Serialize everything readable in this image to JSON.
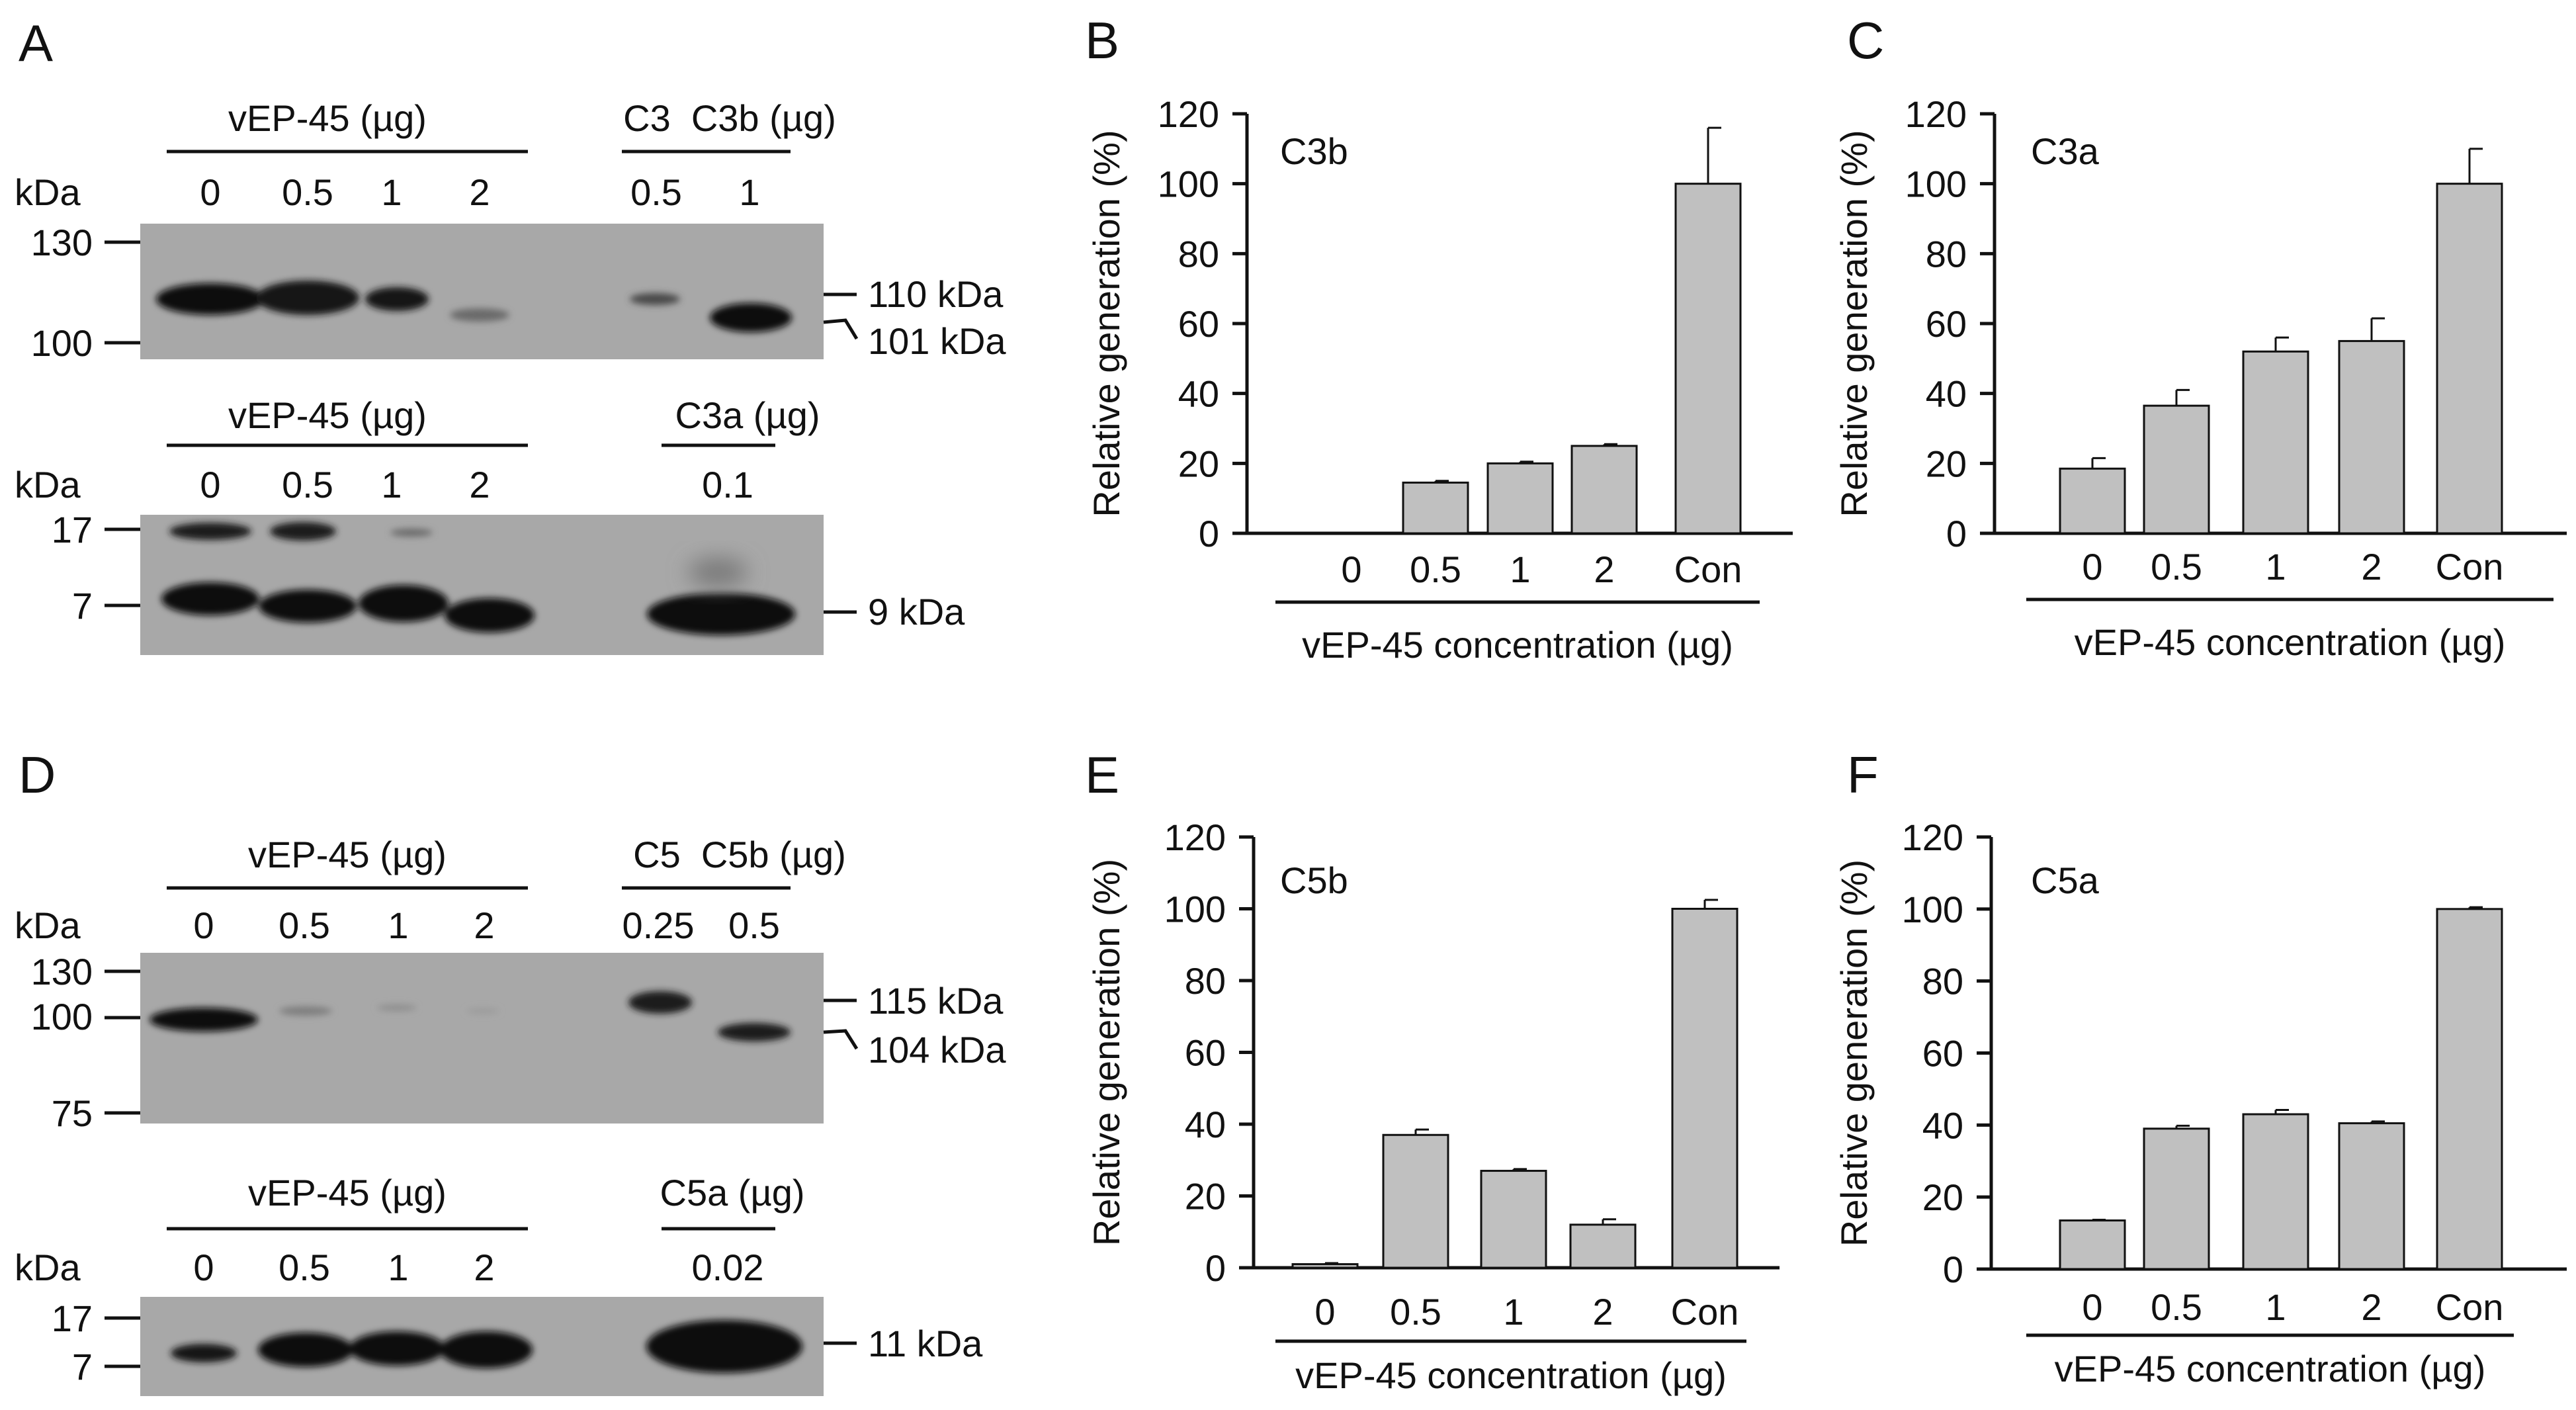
{
  "colors": {
    "bar": "#c0c0c0",
    "ink": "#111111",
    "blot_bg": "#a8a8a8",
    "band": "#0e0e0e"
  },
  "blots": [
    {
      "panel_label": "A",
      "top": {
        "group_label": "vEP-45 (µg)",
        "ctrl_label": "C3  C3b (µg)",
        "kda_label": "kDa",
        "lanes": [
          "0",
          "0.5",
          "1",
          "2",
          "0.5",
          "1"
        ],
        "markers": [
          "130",
          "100"
        ],
        "bands_right": [
          "110 kDa",
          "101 kDa"
        ]
      },
      "bottom": {
        "group_label": "vEP-45 (µg)",
        "ctrl_label": "C3a (µg)",
        "kda_label": "kDa",
        "lanes": [
          "0",
          "0.5",
          "1",
          "2",
          "0.1"
        ],
        "markers": [
          "17",
          "7"
        ],
        "bands_right": [
          "9 kDa"
        ]
      }
    },
    {
      "panel_label": "D",
      "top": {
        "group_label": "vEP-45 (µg)",
        "ctrl_label": "C5  C5b (µg)",
        "kda_label": "kDa",
        "lanes": [
          "0",
          "0.5",
          "1",
          "2",
          "0.25",
          "0.5"
        ],
        "markers": [
          "130",
          "100",
          "75"
        ],
        "bands_right": [
          "115 kDa",
          "104 kDa"
        ]
      },
      "bottom": {
        "group_label": "vEP-45 (µg)",
        "ctrl_label": "C5a (µg)",
        "kda_label": "kDa",
        "lanes": [
          "0",
          "0.5",
          "1",
          "2",
          "0.02"
        ],
        "markers": [
          "17",
          "7"
        ],
        "bands_right": [
          "11 kDa"
        ]
      }
    }
  ],
  "chart_data": [
    {
      "panel_label": "B",
      "type": "bar",
      "title": "C3b",
      "categories": [
        "0",
        "0.5",
        "1",
        "2",
        "Con"
      ],
      "values": [
        0,
        14.5,
        20,
        25,
        100
      ],
      "errors": [
        0,
        0.5,
        0.5,
        0.5,
        16
      ],
      "xlabel": "vEP-45 concentration (µg)",
      "ylabel": "Relative generation (%)",
      "ylim": [
        0,
        120
      ],
      "yticks": [
        "0",
        "20",
        "40",
        "60",
        "80",
        "100",
        "120"
      ]
    },
    {
      "panel_label": "C",
      "type": "bar",
      "title": "C3a",
      "categories": [
        "0",
        "0.5",
        "1",
        "2",
        "Con"
      ],
      "values": [
        18.5,
        36.5,
        52,
        55,
        100
      ],
      "errors": [
        3,
        4.5,
        4,
        6.5,
        10
      ],
      "xlabel": "vEP-45 concentration (µg)",
      "ylabel": "Relative generation (%)",
      "ylim": [
        0,
        120
      ],
      "yticks": [
        "0",
        "20",
        "40",
        "60",
        "80",
        "100",
        "120"
      ]
    },
    {
      "panel_label": "E",
      "type": "bar",
      "title": "C5b",
      "categories": [
        "0",
        "0.5",
        "1",
        "2",
        "Con"
      ],
      "values": [
        1,
        37,
        27,
        12,
        100
      ],
      "errors": [
        0.3,
        1.5,
        0.5,
        1.5,
        2.5
      ],
      "xlabel": "vEP-45 concentration (µg)",
      "ylabel": "Relative generation (%)",
      "ylim": [
        0,
        120
      ],
      "yticks": [
        "0",
        "20",
        "40",
        "60",
        "80",
        "100",
        "120"
      ]
    },
    {
      "panel_label": "F",
      "type": "bar",
      "title": "C5a",
      "categories": [
        "0",
        "0.5",
        "1",
        "2",
        "Con"
      ],
      "values": [
        13.5,
        39,
        43,
        40.5,
        100
      ],
      "errors": [
        0.2,
        0.8,
        1.2,
        0.5,
        0.5
      ],
      "xlabel": "vEP-45 concentration (µg)",
      "ylabel": "Relative generation (%)",
      "ylim": [
        0,
        120
      ],
      "yticks": [
        "0",
        "20",
        "40",
        "60",
        "80",
        "100",
        "120"
      ]
    }
  ]
}
